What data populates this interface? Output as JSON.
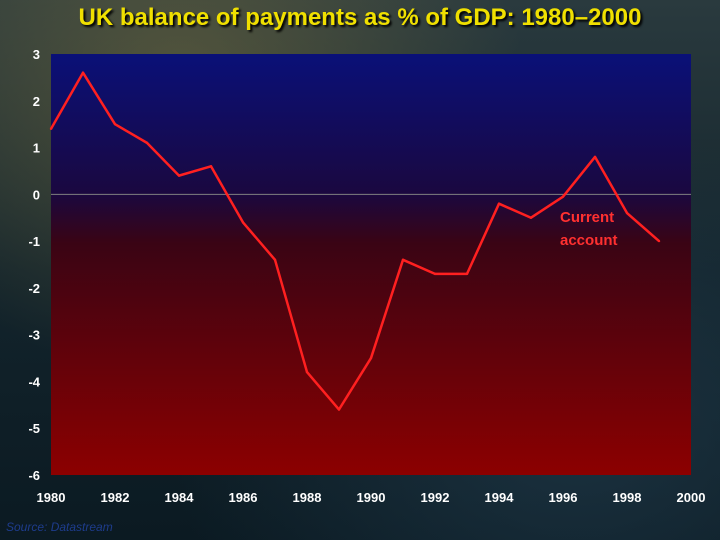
{
  "chart_data": {
    "type": "line",
    "title": "UK balance of payments as % of GDP: 1980–2000",
    "xlabel": "",
    "ylabel": "",
    "xlim": [
      1980,
      2000
    ],
    "ylim": [
      -6,
      3
    ],
    "x_ticks": [
      1980,
      1982,
      1984,
      1986,
      1988,
      1990,
      1992,
      1994,
      1996,
      1998,
      2000
    ],
    "y_ticks": [
      3,
      2,
      1,
      0,
      -1,
      -2,
      -3,
      -4,
      -5,
      -6
    ],
    "series": [
      {
        "name": "Current account",
        "color": "#ff2020",
        "x": [
          1980,
          1981,
          1982,
          1983,
          1984,
          1985,
          1986,
          1987,
          1988,
          1989,
          1990,
          1991,
          1992,
          1993,
          1994,
          1995,
          1996,
          1997,
          1998,
          1999
        ],
        "y": [
          1.4,
          2.6,
          1.5,
          1.1,
          0.4,
          0.6,
          -0.6,
          -1.4,
          -3.8,
          -4.6,
          -3.5,
          -1.4,
          -1.7,
          -1.7,
          -0.2,
          -0.5,
          -0.05,
          0.8,
          -0.4,
          -1.0
        ]
      }
    ],
    "grid": false,
    "background": "blue-to-red gradient",
    "source": "Source: Datastream"
  }
}
